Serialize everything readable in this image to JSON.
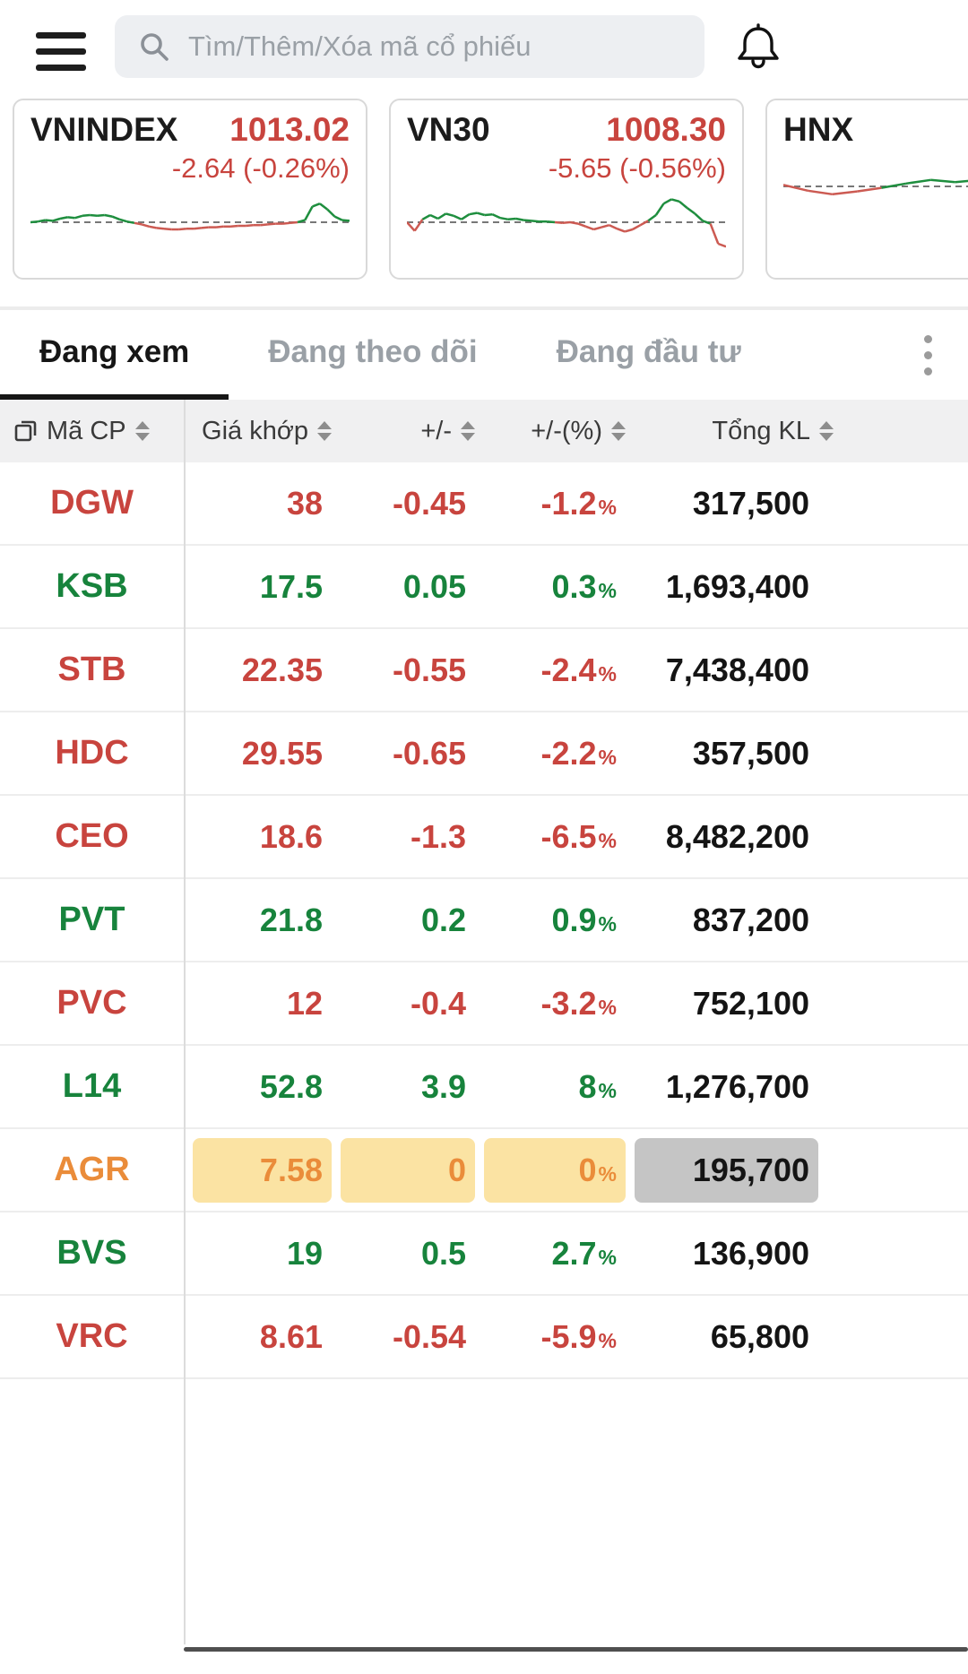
{
  "topbar": {
    "search_placeholder": "Tìm/Thêm/Xóa mã cổ phiếu"
  },
  "indices": [
    {
      "name": "VNINDEX",
      "value": "1013.02",
      "change": "-2.64 (-0.26%)",
      "spark": [
        0,
        0.05,
        0.15,
        0.1,
        0.25,
        0.35,
        0.3,
        0.45,
        0.5,
        0.45,
        0.5,
        0.4,
        0.2,
        0.05,
        -0.05,
        -0.15,
        -0.3,
        -0.4,
        -0.45,
        -0.5,
        -0.5,
        -0.45,
        -0.45,
        -0.4,
        -0.35,
        -0.35,
        -0.3,
        -0.3,
        -0.25,
        -0.25,
        -0.2,
        -0.2,
        -0.15,
        -0.1,
        -0.1,
        -0.05,
        0,
        0.15,
        1.1,
        1.3,
        0.9,
        0.4,
        0.15,
        0.1
      ]
    },
    {
      "name": "VN30",
      "value": "1008.30",
      "change": "-5.65 (-0.56%)",
      "spark": [
        0,
        -0.6,
        0.2,
        0.5,
        0.25,
        0.6,
        0.45,
        0.2,
        0.55,
        0.65,
        0.5,
        0.55,
        0.3,
        0.2,
        0.25,
        0.15,
        0.1,
        0.05,
        0.05,
        0,
        -0.05,
        0,
        -0.1,
        -0.3,
        -0.5,
        -0.35,
        -0.2,
        -0.45,
        -0.65,
        -0.5,
        -0.2,
        0.1,
        0.5,
        1.3,
        1.6,
        1.45,
        1.0,
        0.6,
        0.1,
        -0.1,
        -1.5,
        -1.7
      ]
    },
    {
      "name": "HNX",
      "value": "",
      "change": "",
      "spark": [
        0.1,
        -0.3,
        -0.55,
        -0.35,
        -0.1,
        0.2,
        0.45,
        0.3,
        0.45,
        0.25,
        0.35,
        0.2,
        0.3,
        0.25
      ]
    }
  ],
  "tabs": {
    "items": [
      {
        "label": "Đang xem",
        "active": true
      },
      {
        "label": "Đang theo dõi",
        "active": false
      },
      {
        "label": "Đang đầu tư",
        "active": false
      }
    ]
  },
  "table": {
    "columns": [
      {
        "label": "Mã CP"
      },
      {
        "label": "Giá khớp"
      },
      {
        "label": "+/-"
      },
      {
        "label": "+/-(%)"
      },
      {
        "label": "Tổng KL"
      }
    ],
    "percent_sign": "%",
    "rows": [
      {
        "symbol": "DGW",
        "price": "38",
        "change": "-0.45",
        "pct": "-1.2",
        "volume": "317,500",
        "trend": "down"
      },
      {
        "symbol": "KSB",
        "price": "17.5",
        "change": "0.05",
        "pct": "0.3",
        "volume": "1,693,400",
        "trend": "up"
      },
      {
        "symbol": "STB",
        "price": "22.35",
        "change": "-0.55",
        "pct": "-2.4",
        "volume": "7,438,400",
        "trend": "down"
      },
      {
        "symbol": "HDC",
        "price": "29.55",
        "change": "-0.65",
        "pct": "-2.2",
        "volume": "357,500",
        "trend": "down"
      },
      {
        "symbol": "CEO",
        "price": "18.6",
        "change": "-1.3",
        "pct": "-6.5",
        "volume": "8,482,200",
        "trend": "down"
      },
      {
        "symbol": "PVT",
        "price": "21.8",
        "change": "0.2",
        "pct": "0.9",
        "volume": "837,200",
        "trend": "up"
      },
      {
        "symbol": "PVC",
        "price": "12",
        "change": "-0.4",
        "pct": "-3.2",
        "volume": "752,100",
        "trend": "down"
      },
      {
        "symbol": "L14",
        "price": "52.8",
        "change": "3.9",
        "pct": "8",
        "volume": "1,276,700",
        "trend": "up"
      },
      {
        "symbol": "AGR",
        "price": "7.58",
        "change": "0",
        "pct": "0",
        "volume": "195,700",
        "trend": "ref"
      },
      {
        "symbol": "BVS",
        "price": "19",
        "change": "0.5",
        "pct": "2.7",
        "volume": "136,900",
        "trend": "up"
      },
      {
        "symbol": "VRC",
        "price": "8.61",
        "change": "-0.54",
        "pct": "-5.9",
        "volume": "65,800",
        "trend": "down"
      }
    ]
  },
  "colors": {
    "red": "#c8443e",
    "green": "#17833c",
    "orange": "#ea8c3a",
    "ref_bg": "#fbe3a3",
    "ref_vol_bg": "#c5c5c5",
    "spark_green": "#1e8e3e",
    "spark_red": "#cc5a52"
  }
}
